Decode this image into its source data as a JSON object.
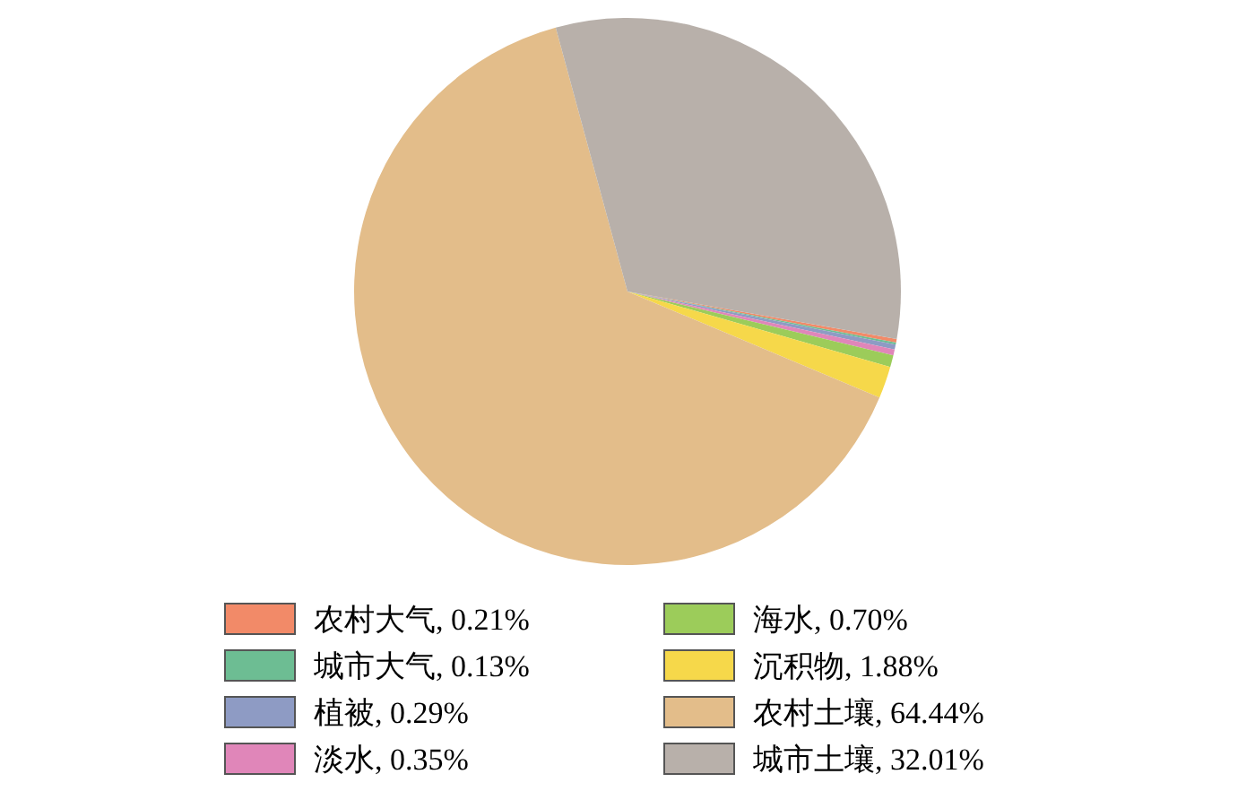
{
  "chart_data": {
    "type": "pie",
    "categories": [
      "农村大气, 0.21%",
      "城市大气, 0.13%",
      "植被, 0.29%",
      "淡水, 0.35%",
      "海水, 0.70%",
      "沉积物, 1.88%",
      "农村土壤, 64.44%",
      "城市土壤, 32.01%"
    ],
    "values": [
      0.21,
      0.13,
      0.29,
      0.35,
      0.7,
      1.88,
      64.44,
      32.01
    ],
    "colors": [
      "#f28a68",
      "#6dbd93",
      "#8e9bc4",
      "#e086b9",
      "#9ccc5a",
      "#f6d84a",
      "#e3bd8a",
      "#b8b0aa"
    ],
    "legend": "bottom"
  }
}
